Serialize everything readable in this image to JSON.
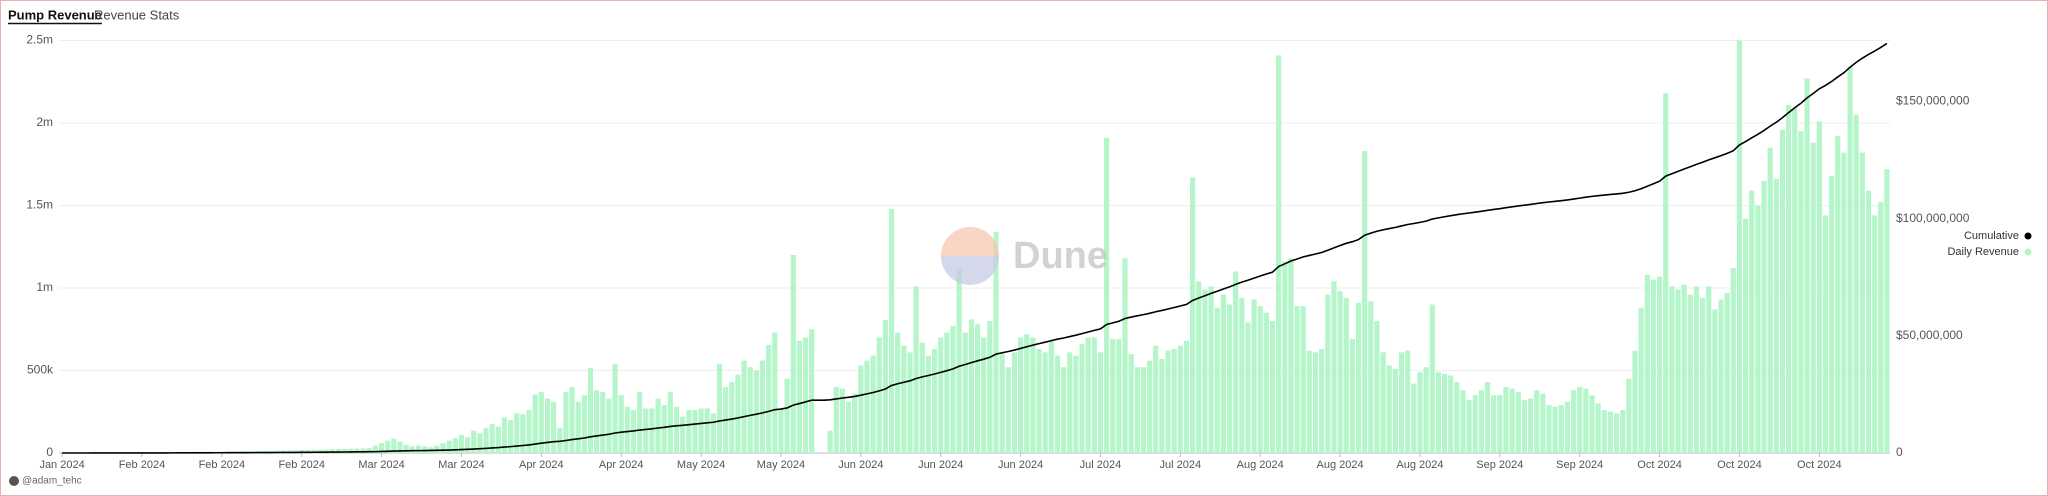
{
  "header": {
    "tabs": [
      "Pump Revenue",
      "Revenue Stats"
    ]
  },
  "footer": {
    "author": "@adam_tehc"
  },
  "watermark": "Dune",
  "chart_data": {
    "type": "bar",
    "categories": [
      "Jan 2024",
      null,
      null,
      null,
      null,
      null,
      null,
      null,
      null,
      null,
      null,
      null,
      null,
      "Feb 2024",
      null,
      null,
      null,
      null,
      null,
      null,
      null,
      null,
      null,
      null,
      null,
      null,
      "Feb 2024",
      null,
      null,
      null,
      null,
      null,
      null,
      null,
      null,
      null,
      null,
      null,
      null,
      "Feb 2024",
      null,
      null,
      null,
      null,
      null,
      null,
      null,
      null,
      null,
      null,
      null,
      null,
      "Mar 2024",
      null,
      null,
      null,
      null,
      null,
      null,
      null,
      null,
      null,
      null,
      null,
      null,
      "Mar 2024",
      null,
      null,
      null,
      null,
      null,
      null,
      null,
      null,
      null,
      null,
      null,
      null,
      "Apr 2024",
      null,
      null,
      null,
      null,
      null,
      null,
      null,
      null,
      null,
      null,
      null,
      null,
      "Apr 2024",
      null,
      null,
      null,
      null,
      null,
      null,
      null,
      null,
      null,
      null,
      null,
      null,
      "May 2024",
      null,
      null,
      null,
      null,
      null,
      null,
      null,
      null,
      null,
      null,
      null,
      null,
      "May 2024",
      null,
      null,
      null,
      null,
      null,
      null,
      null,
      null,
      null,
      null,
      null,
      null,
      "Jun 2024",
      null,
      null,
      null,
      null,
      null,
      null,
      null,
      null,
      null,
      null,
      null,
      null,
      "Jun 2024",
      null,
      null,
      null,
      null,
      null,
      null,
      null,
      null,
      null,
      null,
      null,
      null,
      "Jun 2024",
      null,
      null,
      null,
      null,
      null,
      null,
      null,
      null,
      null,
      null,
      null,
      null,
      "Jul 2024",
      null,
      null,
      null,
      null,
      null,
      null,
      null,
      null,
      null,
      null,
      null,
      null,
      "Jul 2024",
      null,
      null,
      null,
      null,
      null,
      null,
      null,
      null,
      null,
      null,
      null,
      null,
      "Aug 2024",
      null,
      null,
      null,
      null,
      null,
      null,
      null,
      null,
      null,
      null,
      null,
      null,
      "Aug 2024",
      null,
      null,
      null,
      null,
      null,
      null,
      null,
      null,
      null,
      null,
      null,
      null,
      "Aug 2024",
      null,
      null,
      null,
      null,
      null,
      null,
      null,
      null,
      null,
      null,
      null,
      null,
      "Sep 2024",
      null,
      null,
      null,
      null,
      null,
      null,
      null,
      null,
      null,
      null,
      null,
      null,
      "Sep 2024",
      null,
      null,
      null,
      null,
      null,
      null,
      null,
      null,
      null,
      null,
      null,
      null,
      "Oct 2024",
      null,
      null,
      null,
      null,
      null,
      null,
      null,
      null,
      null,
      null,
      null,
      null,
      "Oct 2024",
      null,
      null,
      null,
      null,
      null,
      null,
      null,
      null,
      null,
      null,
      null,
      null,
      "Oct 2024",
      null,
      null,
      null,
      null,
      null,
      null,
      null,
      null,
      null,
      null,
      null
    ],
    "series": [
      {
        "name": "Daily Revenue",
        "type": "bar",
        "color": "#b4f5c9",
        "values": [
          1000,
          1000,
          1000,
          1000,
          2000,
          2000,
          2000,
          2000,
          2000,
          3000,
          3000,
          3000,
          3000,
          4000,
          4000,
          4000,
          5000,
          5000,
          5000,
          6000,
          6000,
          6000,
          7000,
          7000,
          8000,
          8000,
          9000,
          9000,
          10000,
          10000,
          11000,
          11000,
          12000,
          12000,
          13000,
          14000,
          15000,
          16000,
          17000,
          18000,
          19000,
          20000,
          21000,
          22000,
          23000,
          24000,
          25000,
          26000,
          27000,
          28000,
          30000,
          45000,
          60000,
          75000,
          87000,
          70000,
          50000,
          40000,
          45000,
          40000,
          35000,
          45000,
          60000,
          75000,
          90000,
          110000,
          95000,
          135000,
          120000,
          150000,
          175000,
          160000,
          215000,
          200000,
          240000,
          235000,
          260000,
          355000,
          370000,
          330000,
          310000,
          150000,
          370000,
          400000,
          310000,
          350000,
          515000,
          380000,
          370000,
          330000,
          540000,
          350000,
          280000,
          260000,
          370000,
          270000,
          270000,
          330000,
          290000,
          370000,
          280000,
          220000,
          260000,
          260000,
          270000,
          270000,
          240000,
          540000,
          400000,
          430000,
          475000,
          560000,
          520000,
          500000,
          560000,
          655000,
          730000,
          270000,
          450000,
          1200000,
          680000,
          700000,
          750000,
          0,
          0,
          135000,
          400000,
          390000,
          310000,
          360000,
          530000,
          560000,
          590000,
          700000,
          805000,
          1480000,
          730000,
          650000,
          610000,
          1010000,
          670000,
          590000,
          630000,
          700000,
          730000,
          770000,
          1120000,
          730000,
          810000,
          780000,
          700000,
          800000,
          1340000,
          610000,
          520000,
          610000,
          700000,
          720000,
          700000,
          630000,
          610000,
          680000,
          590000,
          520000,
          610000,
          590000,
          660000,
          700000,
          700000,
          610000,
          1910000,
          690000,
          690000,
          1180000,
          600000,
          520000,
          520000,
          560000,
          650000,
          570000,
          620000,
          630000,
          650000,
          680000,
          1670000,
          1040000,
          990000,
          1010000,
          880000,
          960000,
          900000,
          1100000,
          940000,
          790000,
          930000,
          890000,
          850000,
          800000,
          2410000,
          1160000,
          1180000,
          890000,
          890000,
          620000,
          610000,
          630000,
          960000,
          1040000,
          980000,
          940000,
          690000,
          910000,
          1830000,
          920000,
          800000,
          610000,
          530000,
          510000,
          610000,
          620000,
          420000,
          490000,
          520000,
          900000,
          490000,
          480000,
          470000,
          430000,
          380000,
          320000,
          350000,
          380000,
          430000,
          350000,
          350000,
          400000,
          390000,
          370000,
          320000,
          330000,
          380000,
          360000,
          290000,
          280000,
          290000,
          310000,
          380000,
          400000,
          390000,
          350000,
          300000,
          260000,
          250000,
          240000,
          260000,
          450000,
          620000,
          880000,
          1080000,
          1050000,
          1070000,
          2180000,
          1010000,
          990000,
          1020000,
          960000,
          1010000,
          940000,
          1010000,
          870000,
          930000,
          970000,
          1120000,
          2500000,
          1420000,
          1590000,
          1500000,
          1650000,
          1850000,
          1660000,
          1960000,
          2110000,
          2090000,
          1950000,
          2270000,
          1880000,
          2010000,
          1440000,
          1680000,
          1920000,
          1820000,
          2340000,
          2050000,
          1820000,
          1590000,
          1440000,
          1520000,
          1720000
        ]
      },
      {
        "name": "Cumulative",
        "type": "line",
        "axis": "y2",
        "color": "#000000",
        "values": [
          1000,
          2000,
          3000,
          4000,
          6000,
          8000,
          10000,
          12000,
          14000,
          17000,
          20000,
          23000,
          26000,
          30000,
          34000,
          38000,
          43000,
          48000,
          53000,
          59000,
          65000,
          71000,
          78000,
          85000,
          93000,
          101000,
          110000,
          119000,
          129000,
          139000,
          150000,
          161000,
          173000,
          185000,
          198000,
          212000,
          227000,
          243000,
          260000,
          278000,
          297000,
          317000,
          338000,
          360000,
          383000,
          407000,
          432000,
          458000,
          485000,
          513000,
          543000,
          588000,
          648000,
          723000,
          810000,
          880000,
          930000,
          970000,
          1015000,
          1055000,
          1090000,
          1135000,
          1195000,
          1270000,
          1360000,
          1470000,
          1565000,
          1700000,
          1820000,
          1970000,
          2145000,
          2305000,
          2520000,
          2720000,
          2960000,
          3195000,
          3455000,
          3810000,
          4180000,
          4510000,
          4820000,
          4970000,
          5340000,
          5740000,
          6050000,
          6400000,
          6915000,
          7295000,
          7665000,
          7995000,
          8535000,
          8885000,
          9165000,
          9425000,
          9795000,
          10065000,
          10335000,
          10665000,
          10955000,
          11325000,
          11605000,
          11825000,
          12085000,
          12345000,
          12615000,
          12885000,
          13125000,
          13665000,
          14065000,
          14495000,
          14970000,
          15530000,
          16050000,
          16550000,
          17110000,
          17765000,
          18495000,
          18765000,
          19215000,
          20415000,
          21095000,
          21795000,
          22545000,
          22545000,
          22545000,
          22680000,
          23080000,
          23470000,
          23780000,
          24140000,
          24670000,
          25230000,
          25820000,
          26520000,
          27325000,
          28805000,
          29535000,
          30185000,
          30795000,
          31805000,
          32475000,
          33065000,
          33695000,
          34395000,
          35125000,
          35895000,
          37015000,
          37745000,
          38555000,
          39335000,
          40035000,
          40835000,
          42175000,
          42785000,
          43305000,
          43915000,
          44615000,
          45335000,
          46035000,
          46665000,
          47275000,
          47955000,
          48545000,
          49065000,
          49675000,
          50265000,
          50925000,
          51625000,
          52325000,
          52935000,
          54845000,
          55535000,
          56225000,
          57405000,
          58005000,
          58525000,
          59045000,
          59605000,
          60255000,
          60825000,
          61445000,
          62075000,
          62725000,
          63405000,
          65075000,
          66115000,
          67105000,
          68115000,
          68995000,
          69955000,
          70855000,
          71955000,
          72895000,
          73685000,
          74615000,
          75505000,
          76355000,
          77155000,
          79565000,
          80725000,
          81905000,
          82795000,
          83685000,
          84305000,
          84915000,
          85545000,
          86505000,
          87545000,
          88525000,
          89465000,
          90155000,
          91065000,
          92895000,
          93815000,
          94615000,
          95225000,
          95755000,
          96265000,
          96875000,
          97495000,
          97915000,
          98405000,
          98925000,
          99825000,
          100315000,
          100795000,
          101265000,
          101695000,
          102075000,
          102395000,
          102745000,
          103125000,
          103555000,
          103905000,
          104255000,
          104655000,
          105045000,
          105415000,
          105735000,
          106065000,
          106445000,
          106805000,
          107095000,
          107375000,
          107665000,
          107975000,
          108355000,
          108755000,
          109145000,
          109495000,
          109795000,
          110055000,
          110305000,
          110545000,
          110805000,
          111255000,
          111875000,
          112755000,
          113835000,
          114885000,
          115955000,
          118135000,
          119145000,
          120135000,
          121155000,
          122115000,
          123125000,
          124065000,
          125075000,
          125945000,
          126875000,
          127845000,
          128965000,
          131465000,
          132885000,
          134475000,
          135975000,
          137625000,
          139475000,
          141135000,
          143095000,
          145205000,
          147295000,
          149245000,
          151515000,
          153395000,
          155405000,
          156845000,
          158525000,
          160445000,
          162265000,
          164605000,
          166655000,
          168475000,
          170065000,
          171505000,
          173025000,
          174745000
        ]
      }
    ],
    "ylim": [
      0,
      2500000
    ],
    "yticks": [
      0,
      {
        "value": 500000,
        "label": "500k"
      },
      {
        "value": 1000000,
        "label": "1m"
      },
      {
        "value": 1500000,
        "label": "1.5m"
      },
      {
        "value": 2000000,
        "label": "2m"
      },
      {
        "value": 2500000,
        "label": "2.5m"
      }
    ],
    "y2lim": [
      0,
      176000000
    ],
    "y2ticks": [
      0,
      {
        "value": 50000000,
        "label": "$50,000,000"
      },
      {
        "value": 100000000,
        "label": "$100,000,000"
      },
      {
        "value": 150000000,
        "label": "$150,000,000"
      }
    ],
    "grid": true,
    "legend": "right"
  }
}
